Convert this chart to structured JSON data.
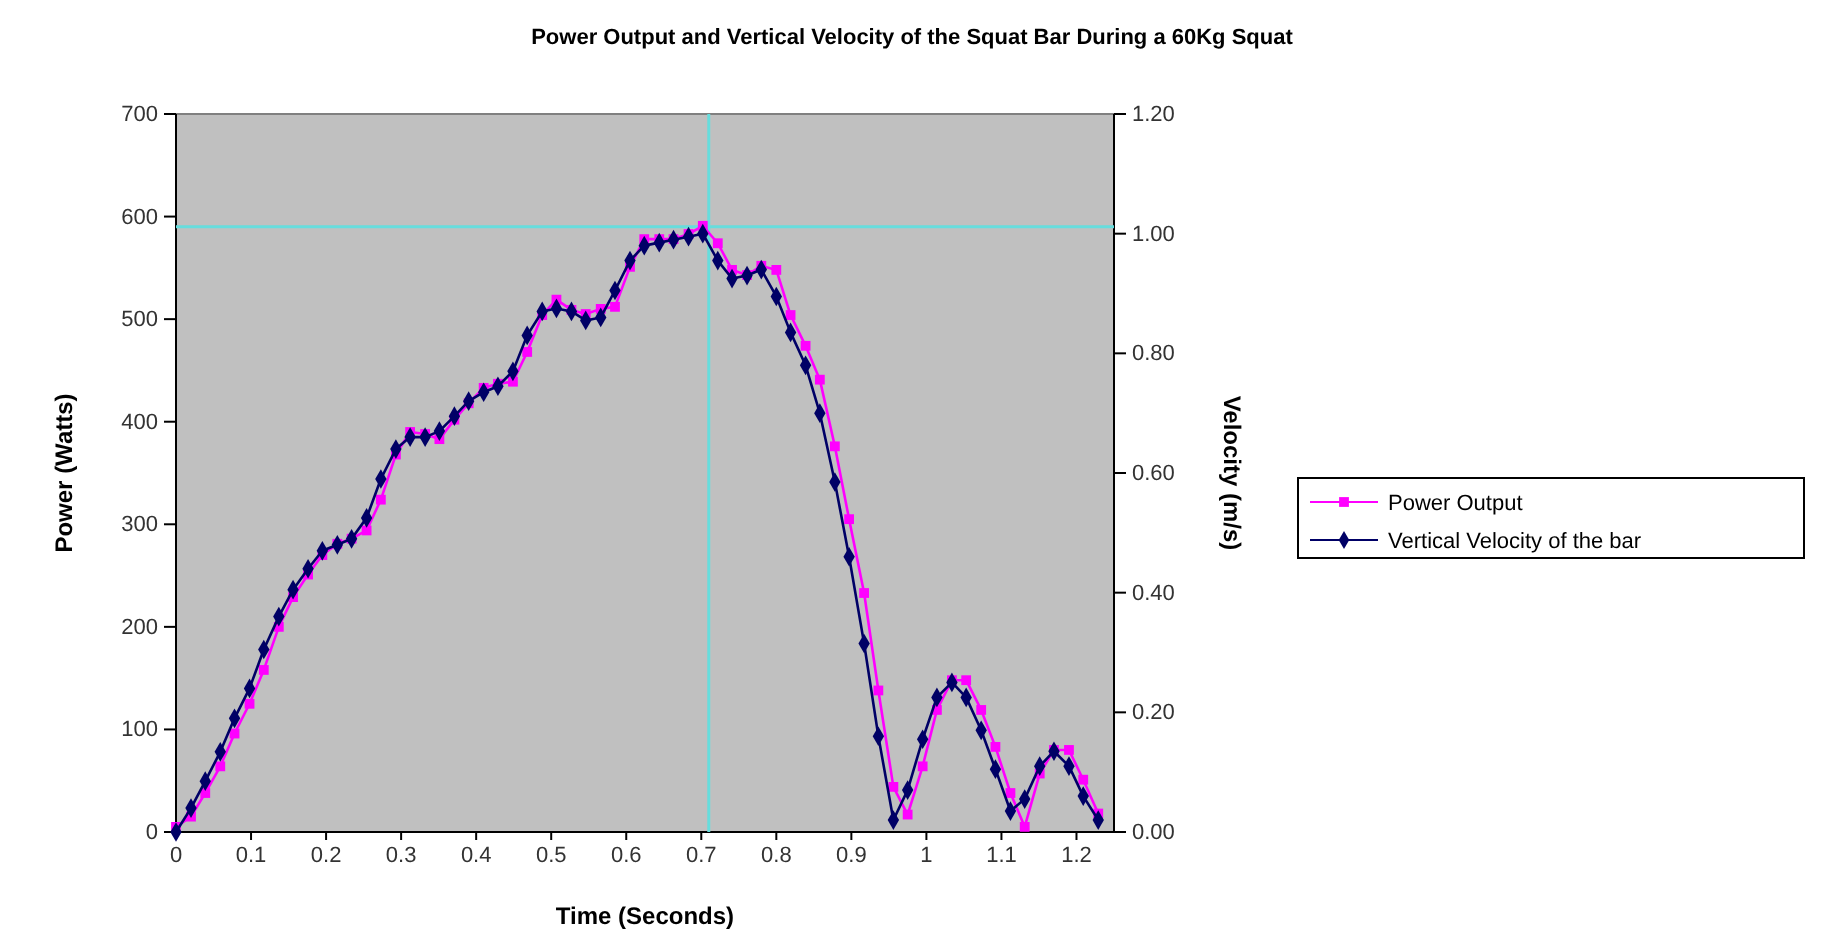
{
  "chart_data": {
    "type": "line",
    "title": "Power Output and Vertical Velocity of the Squat Bar During a 60Kg Squat",
    "xlabel": "Time (Seconds)",
    "ylabel": "Power (Watts)",
    "y2label": "Velocity (m/s)",
    "x": [
      0,
      0.02,
      0.039,
      0.059,
      0.078,
      0.098,
      0.117,
      0.137,
      0.156,
      0.176,
      0.195,
      0.215,
      0.234,
      0.254,
      0.273,
      0.293,
      0.312,
      0.332,
      0.351,
      0.371,
      0.39,
      0.41,
      0.429,
      0.449,
      0.468,
      0.488,
      0.507,
      0.527,
      0.546,
      0.566,
      0.585,
      0.605,
      0.624,
      0.644,
      0.663,
      0.683,
      0.702,
      0.722,
      0.741,
      0.761,
      0.78,
      0.8,
      0.819,
      0.839,
      0.858,
      0.878,
      0.897,
      0.917,
      0.936,
      0.956,
      0.975,
      0.995,
      1.014,
      1.034,
      1.053,
      1.073,
      1.092,
      1.112,
      1.131,
      1.151,
      1.17,
      1.19,
      1.209,
      1.229
    ],
    "series": [
      {
        "name": "Power Output",
        "color": "#ff00ff",
        "marker": "square",
        "values": [
          5,
          15,
          38,
          64,
          96,
          125,
          158,
          200,
          229,
          251,
          270,
          281,
          286,
          294,
          324,
          368,
          390,
          388,
          383,
          402,
          418,
          433,
          437,
          439,
          468,
          504,
          519,
          509,
          505,
          510,
          512,
          551,
          578,
          578,
          578,
          583,
          591,
          574,
          548,
          543,
          552,
          548,
          504,
          474,
          441,
          376,
          305,
          233,
          138,
          44,
          17,
          64,
          119,
          148,
          148,
          119,
          83,
          38,
          5,
          57,
          80,
          80,
          51,
          18
        ]
      },
      {
        "name": "Vertical Velocity of the bar",
        "color": "#000066",
        "marker": "diamond",
        "axis": "y2",
        "values": [
          0.0,
          0.04,
          0.085,
          0.134,
          0.19,
          0.24,
          0.305,
          0.36,
          0.405,
          0.44,
          0.47,
          0.48,
          0.49,
          0.525,
          0.59,
          0.64,
          0.66,
          0.66,
          0.67,
          0.695,
          0.72,
          0.735,
          0.745,
          0.77,
          0.83,
          0.87,
          0.875,
          0.87,
          0.855,
          0.86,
          0.905,
          0.955,
          0.98,
          0.985,
          0.99,
          0.995,
          1.0,
          0.955,
          0.925,
          0.93,
          0.94,
          0.895,
          0.835,
          0.78,
          0.7,
          0.585,
          0.46,
          0.315,
          0.16,
          0.02,
          0.07,
          0.155,
          0.225,
          0.25,
          0.225,
          0.17,
          0.105,
          0.035,
          0.055,
          0.11,
          0.135,
          0.11,
          0.06,
          0.02
        ]
      }
    ],
    "xlim": [
      0,
      1.25
    ],
    "xticks": [
      0,
      0.1,
      0.2,
      0.3,
      0.4,
      0.5,
      0.6,
      0.7,
      0.8,
      0.9,
      1,
      1.1,
      1.2
    ],
    "ylim": [
      0,
      700
    ],
    "yticks": [
      0,
      100,
      200,
      300,
      400,
      500,
      600,
      700
    ],
    "y2lim": [
      0,
      1.2
    ],
    "y2ticks": [
      {
        "value": 0,
        "label": "0.00"
      },
      {
        "value": 0.2,
        "label": "0.20"
      },
      {
        "value": 0.4,
        "label": "0.40"
      },
      {
        "value": 0.6,
        "label": "0.60"
      },
      {
        "value": 0.8,
        "label": "0.80"
      },
      {
        "value": 1,
        "label": "1.00"
      },
      {
        "value": 1.2,
        "label": "1.20"
      }
    ],
    "ref_lines": [
      {
        "axis": "y",
        "value": 590,
        "color": "#66dddd"
      },
      {
        "axis": "x",
        "value": 0.71,
        "color": "#66dddd"
      }
    ],
    "legend": "right",
    "grid": false,
    "line_style": "solid"
  }
}
